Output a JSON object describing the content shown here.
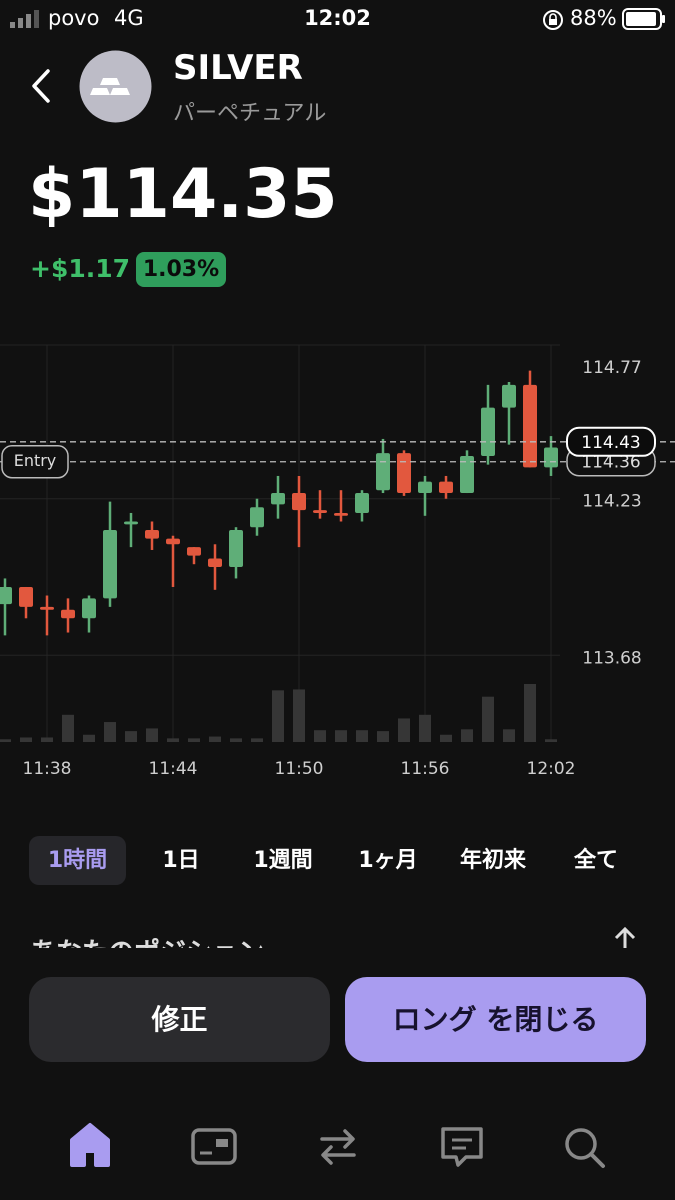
{
  "status_bar": {
    "carrier": "povo",
    "network": "4G",
    "time": "12:02",
    "battery": "88%"
  },
  "header": {
    "title": "SILVER",
    "subtitle": "パーペチュアル"
  },
  "quote": {
    "price": "$114.35",
    "change": "+$1.17",
    "change_percent": "1.03%"
  },
  "chart_data": {
    "type": "candlestick",
    "x": [
      null,
      null,
      "11:38",
      null,
      null,
      null,
      null,
      null,
      "11:44",
      null,
      null,
      null,
      null,
      null,
      "11:50",
      null,
      null,
      null,
      null,
      null,
      "11:56",
      null,
      null,
      null,
      null,
      null,
      "12:02"
    ],
    "open": [
      113.86,
      113.92,
      113.85,
      113.84,
      113.81,
      113.88,
      114.14,
      114.12,
      114.09,
      114.06,
      114.02,
      113.99,
      114.13,
      114.21,
      114.25,
      114.19,
      114.18,
      114.18,
      114.26,
      114.39,
      114.25,
      114.29,
      114.25,
      114.38,
      114.55,
      114.63,
      114.34
    ],
    "high": [
      113.95,
      113.92,
      113.89,
      113.88,
      113.89,
      114.22,
      114.18,
      114.15,
      114.1,
      114.06,
      114.07,
      114.13,
      114.23,
      114.31,
      114.31,
      114.26,
      114.26,
      114.26,
      114.44,
      114.4,
      114.31,
      114.31,
      114.4,
      114.63,
      114.64,
      114.68,
      114.45
    ],
    "low": [
      113.75,
      113.81,
      113.75,
      113.76,
      113.76,
      113.85,
      114.06,
      114.05,
      113.92,
      114.0,
      113.91,
      113.95,
      114.1,
      114.16,
      114.06,
      114.16,
      114.15,
      114.15,
      114.25,
      114.24,
      114.17,
      114.23,
      114.25,
      114.35,
      114.42,
      114.34,
      114.31
    ],
    "close": [
      113.92,
      113.85,
      113.84,
      113.81,
      113.88,
      114.12,
      114.15,
      114.09,
      114.07,
      114.03,
      113.99,
      114.12,
      114.2,
      114.25,
      114.19,
      114.18,
      114.17,
      114.25,
      114.39,
      114.25,
      114.29,
      114.25,
      114.38,
      114.55,
      114.63,
      114.34,
      114.41
    ],
    "volumes": [
      3,
      5,
      5,
      30,
      8,
      22,
      12,
      15,
      4,
      4,
      6,
      4,
      4,
      57,
      58,
      13,
      13,
      13,
      12,
      26,
      30,
      8,
      14,
      50,
      14,
      64,
      3
    ],
    "up_color": "#5fae78",
    "down_color": "#e2583e",
    "volume_color": "#363636",
    "ylim": [
      113.66,
      114.77
    ],
    "yticks": [
      114.77,
      114.23,
      113.68
    ],
    "grid": true,
    "current_price": 114.43,
    "entry_price": 114.36,
    "entry_label": "Entry"
  },
  "tabs": [
    "1時間",
    "1日",
    "1週間",
    "1ヶ月",
    "年初来",
    "全て"
  ],
  "section_title": "あなたのポジション",
  "buttons": {
    "edit": "修正",
    "close": "ロング を閉じる"
  }
}
